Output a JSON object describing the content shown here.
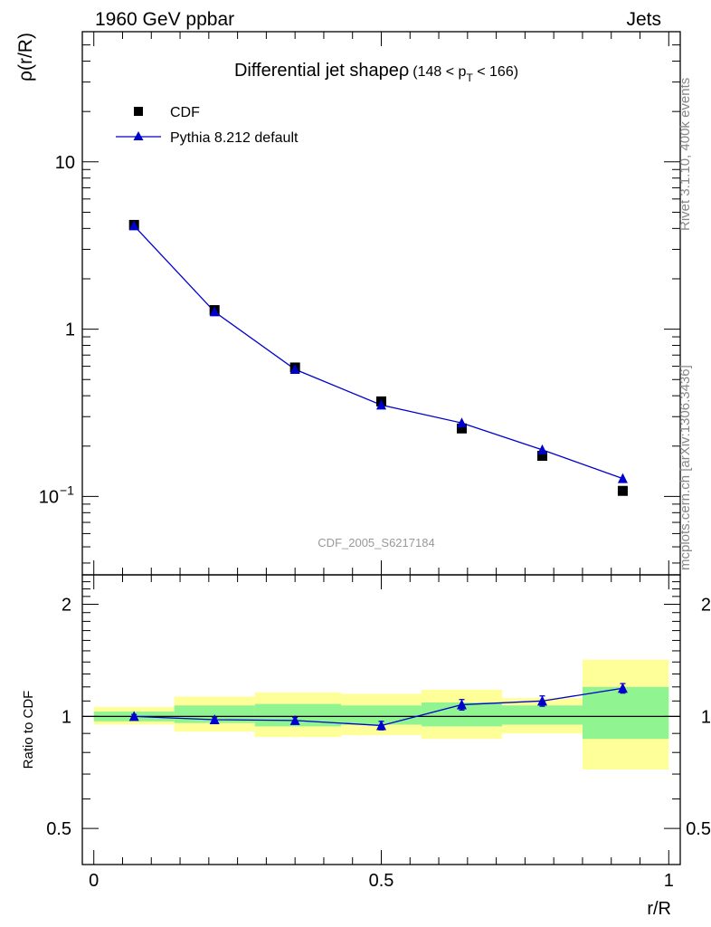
{
  "header": {
    "energy_label": "1960 GeV ppbar",
    "process_label": "Jets"
  },
  "side_labels": {
    "rivet": "Rivet 3.1.10,  400k events",
    "mcplots": "mcplots.cern.ch [arXiv:1306.3436]"
  },
  "colors": {
    "data": "#000000",
    "mc": "#0000cc",
    "band_stat": "#90f590",
    "band_total": "#ffff99"
  },
  "chart_data": [
    {
      "type": "scatter",
      "title_main": "Differential jet shape",
      "title_rho": "ρ",
      "title_range": "(148 < p",
      "title_sub": "T",
      "title_range_end": " < 166)",
      "ylabel": "ρ(r/R)",
      "xlabel": "",
      "yscale": "log",
      "ylim": [
        0.034,
        60
      ],
      "xlim": [
        -0.02,
        1.02
      ],
      "yticks": [
        {
          "value": 0.1,
          "base": "10",
          "exp": "−1"
        },
        {
          "value": 1,
          "label": "1"
        },
        {
          "value": 10,
          "label": "10"
        }
      ],
      "watermark": "CDF_2005_S6217184",
      "legend": [
        {
          "name": "CDF",
          "marker": "square"
        },
        {
          "name": "Pythia 8.212 default",
          "marker": "triangle-line"
        }
      ],
      "series": [
        {
          "name": "CDF",
          "x": [
            0.07,
            0.21,
            0.35,
            0.5,
            0.64,
            0.78,
            0.92
          ],
          "y": [
            4.2,
            1.3,
            0.59,
            0.37,
            0.255,
            0.175,
            0.108
          ]
        },
        {
          "name": "Pythia 8.212 default",
          "x": [
            0.07,
            0.21,
            0.35,
            0.5,
            0.64,
            0.78,
            0.92
          ],
          "y": [
            4.15,
            1.27,
            0.575,
            0.352,
            0.275,
            0.19,
            0.128
          ]
        }
      ]
    },
    {
      "type": "line",
      "ylabel": "Ratio to CDF",
      "xlabel": "r/R",
      "yscale": "log",
      "ylim": [
        0.4,
        2.4
      ],
      "xlim": [
        -0.02,
        1.02
      ],
      "xticks": [
        {
          "value": 0,
          "label": "0"
        },
        {
          "value": 0.5,
          "label": "0.5"
        },
        {
          "value": 1,
          "label": "1"
        }
      ],
      "yticks": [
        {
          "value": 0.5,
          "label": "0.5"
        },
        {
          "value": 1,
          "label": "1"
        },
        {
          "value": 2,
          "label": "2"
        }
      ],
      "reference_line": 1,
      "bands": [
        {
          "x0": 0.0,
          "x1": 0.14,
          "stat_lo": 0.97,
          "stat_hi": 1.03,
          "tot_lo": 0.95,
          "tot_hi": 1.06
        },
        {
          "x0": 0.14,
          "x1": 0.28,
          "stat_lo": 0.96,
          "stat_hi": 1.07,
          "tot_lo": 0.91,
          "tot_hi": 1.13
        },
        {
          "x0": 0.28,
          "x1": 0.43,
          "stat_lo": 0.94,
          "stat_hi": 1.08,
          "tot_lo": 0.88,
          "tot_hi": 1.16
        },
        {
          "x0": 0.43,
          "x1": 0.57,
          "stat_lo": 0.95,
          "stat_hi": 1.07,
          "tot_lo": 0.89,
          "tot_hi": 1.15
        },
        {
          "x0": 0.57,
          "x1": 0.71,
          "stat_lo": 0.94,
          "stat_hi": 1.09,
          "tot_lo": 0.87,
          "tot_hi": 1.18
        },
        {
          "x0": 0.71,
          "x1": 0.85,
          "stat_lo": 0.95,
          "stat_hi": 1.07,
          "tot_lo": 0.9,
          "tot_hi": 1.12
        },
        {
          "x0": 0.85,
          "x1": 1.0,
          "stat_lo": 0.87,
          "stat_hi": 1.2,
          "tot_lo": 0.72,
          "tot_hi": 1.42
        }
      ],
      "series": [
        {
          "name": "Pythia 8.212 default",
          "x": [
            0.07,
            0.21,
            0.35,
            0.5,
            0.64,
            0.78,
            0.92
          ],
          "y": [
            1.0,
            0.98,
            0.975,
            0.945,
            1.075,
            1.1,
            1.19
          ],
          "err": [
            0.012,
            0.012,
            0.018,
            0.025,
            0.035,
            0.035,
            0.035
          ]
        }
      ]
    }
  ]
}
